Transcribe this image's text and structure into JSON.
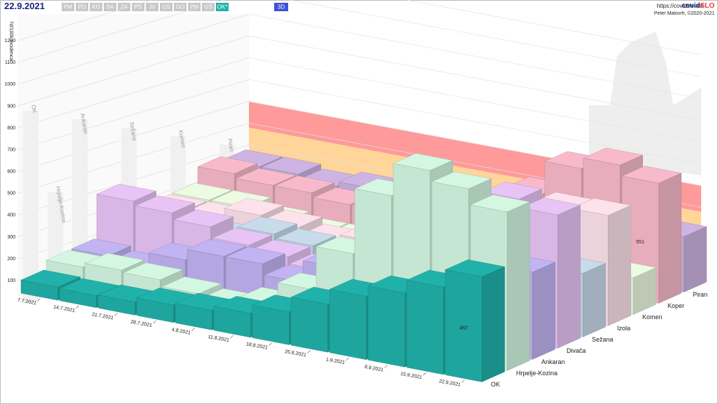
{
  "header": {
    "date": "22.9.2021",
    "buttons": [
      "PM",
      "PD",
      "KO",
      "SA",
      "ZA",
      "PS",
      "JV",
      "OS",
      "GO",
      "PN",
      "GS",
      "OK*"
    ],
    "mode": "3D",
    "url": "https://covidslo.net",
    "brand_a": "covid",
    "brand_b": "SLO",
    "author": "Peter Malovrh, ©2020-2021"
  },
  "chart_data": {
    "type": "bar3d",
    "ylabel": "7d/100k incidenca",
    "categories": [
      "7.7.2021",
      "14.7.2021",
      "21.7.2021",
      "28.7.2021",
      "4.8.2021",
      "11.8.2021",
      "18.8.2021",
      "25.8.2021",
      "1.9.2021",
      "8.9.2021",
      "15.9.2021",
      "22.9.2021"
    ],
    "ylim": [
      0,
      1200
    ],
    "yticks": [
      100,
      200,
      300,
      400,
      500,
      600,
      700,
      800,
      900,
      1000,
      1100,
      1200
    ],
    "grid": true,
    "series": [
      {
        "name": "OK",
        "color": "#20b2aa",
        "values": [
          60,
          55,
          60,
          80,
          90,
          110,
          150,
          220,
          290,
          340,
          400,
          482
        ]
      },
      {
        "name": "Hrpelje-Kozina",
        "color": "#d4f7e2",
        "values": [
          100,
          120,
          110,
          80,
          60,
          100,
          200,
          400,
          700,
          850,
          800,
          728
        ]
      },
      {
        "name": "Ankaran",
        "color": "#c2b4f2",
        "values": [
          100,
          80,
          150,
          200,
          200,
          150,
          250,
          200,
          300,
          350,
          450,
          400
        ]
      },
      {
        "name": "Divača",
        "color": "#e8c4f6",
        "values": [
          300,
          280,
          250,
          200,
          180,
          150,
          120,
          150,
          300,
          500,
          650,
          611
        ]
      },
      {
        "name": "Sežana",
        "color": "#c8dbea",
        "values": [
          120,
          150,
          150,
          200,
          180,
          150,
          180,
          200,
          250,
          300,
          350,
          292
        ]
      },
      {
        "name": "Izola",
        "color": "#fde2ec",
        "values": [
          150,
          150,
          200,
          180,
          150,
          180,
          200,
          250,
          350,
          450,
          500,
          506
        ]
      },
      {
        "name": "Komen",
        "color": "#ecfbe2",
        "values": [
          150,
          150,
          120,
          100,
          100,
          150,
          200,
          250,
          300,
          250,
          200,
          169
        ]
      },
      {
        "name": "Koper",
        "color": "#f8bacb",
        "values": [
          220,
          200,
          200,
          180,
          180,
          200,
          250,
          300,
          400,
          550,
          600,
          551
        ]
      },
      {
        "name": "Piran",
        "color": "#cdb4e2",
        "values": [
          200,
          200,
          180,
          200,
          180,
          180,
          200,
          250,
          300,
          300,
          280,
          254
        ]
      }
    ]
  }
}
